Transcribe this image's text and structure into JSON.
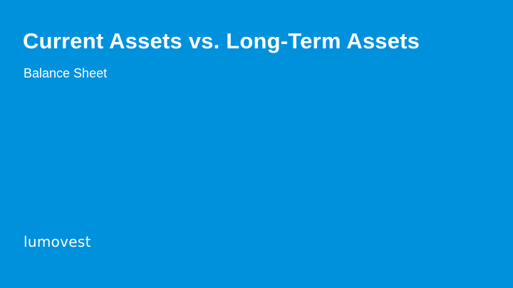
{
  "slide": {
    "title": "Current Assets vs. Long-Term Assets",
    "subtitle": "Balance Sheet",
    "brand": "lumovest"
  },
  "colors": {
    "background": "#0091dc",
    "text": "#ffffff"
  }
}
